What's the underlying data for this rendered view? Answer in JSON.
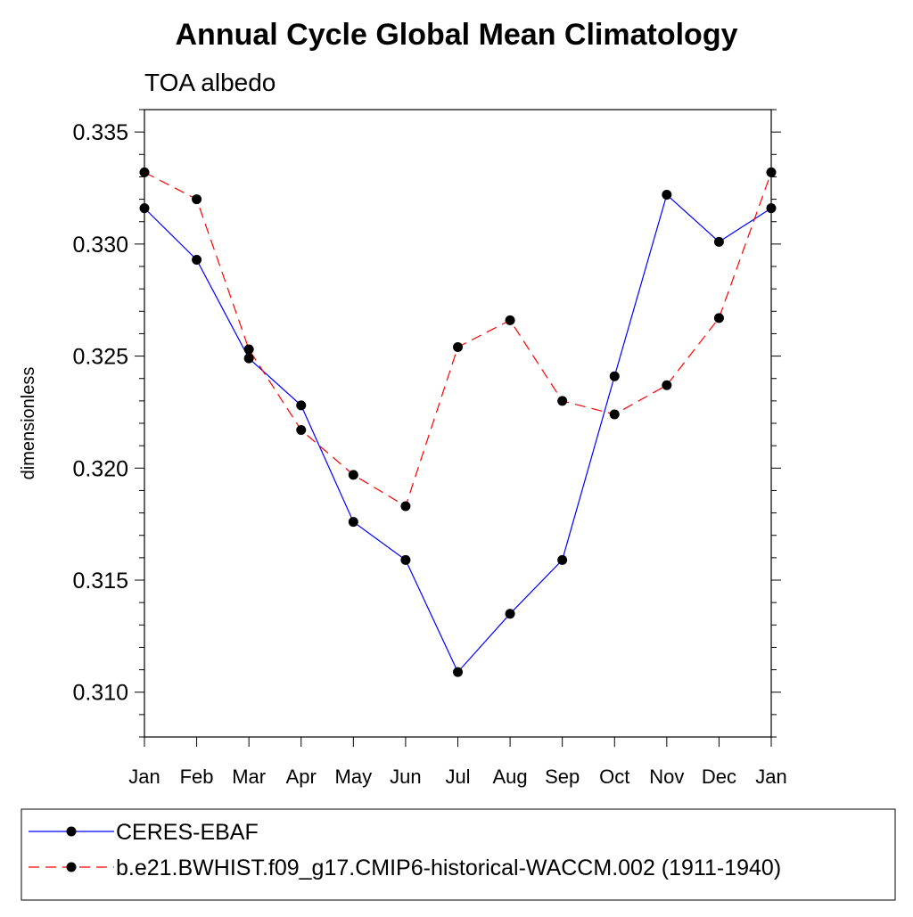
{
  "chart_data": {
    "type": "line",
    "title": "Annual Cycle Global Mean Climatology",
    "subtitle": "TOA albedo",
    "xlabel": "",
    "ylabel": "dimensionless",
    "categories": [
      "Jan",
      "Feb",
      "Mar",
      "Apr",
      "May",
      "Jun",
      "Jul",
      "Aug",
      "Sep",
      "Oct",
      "Nov",
      "Dec",
      "Jan"
    ],
    "ylim": [
      0.308,
      0.336
    ],
    "yticks": [
      0.31,
      0.315,
      0.32,
      0.325,
      0.33,
      0.335
    ],
    "ytick_labels": [
      "0.310",
      "0.315",
      "0.320",
      "0.325",
      "0.330",
      "0.335"
    ],
    "grid": false,
    "legend_position": "bottom",
    "series": [
      {
        "name": "CERES-EBAF",
        "color": "#0000ff",
        "line_style": "solid",
        "marker": "filled-circle",
        "values": [
          0.3316,
          0.3293,
          0.3249,
          0.3228,
          0.3176,
          0.3159,
          0.3109,
          0.3135,
          0.3159,
          0.3241,
          0.3322,
          0.3301,
          0.3316
        ]
      },
      {
        "name": "b.e21.BWHIST.f09_g17.CMIP6-historical-WACCM.002 (1911-1940)",
        "color": "#ff0000",
        "line_style": "dashed",
        "marker": "filled-circle",
        "values": [
          0.3332,
          0.332,
          0.3253,
          0.3217,
          0.3197,
          0.3183,
          0.3254,
          0.3266,
          0.323,
          0.3224,
          0.3237,
          0.3267,
          0.3332
        ]
      }
    ]
  }
}
